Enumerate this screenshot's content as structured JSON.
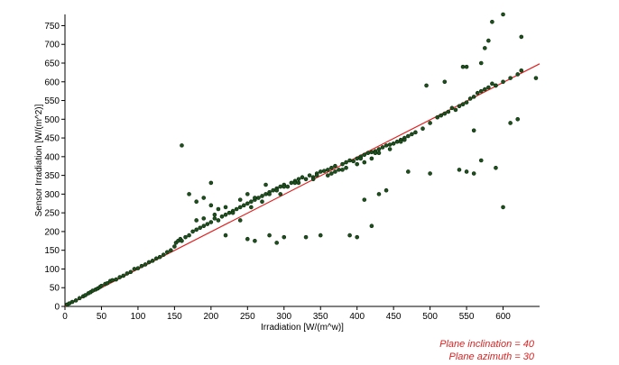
{
  "chart_data": {
    "type": "scatter",
    "title": "",
    "xlabel": "Irradiation [W/(m^w)]",
    "ylabel": "Sensor Irradiation [W/(m^2)]",
    "xlim": [
      0,
      650
    ],
    "ylim": [
      0,
      780
    ],
    "xticks": [
      0,
      50,
      100,
      150,
      200,
      250,
      300,
      350,
      400,
      450,
      500,
      550,
      600
    ],
    "yticks": [
      0,
      50,
      100,
      150,
      200,
      250,
      300,
      350,
      400,
      450,
      500,
      550,
      600,
      650,
      700,
      750
    ],
    "grid": false,
    "legend": "none",
    "colors": {
      "points": "#1f4f1f",
      "point_stroke": "#0a2a0a",
      "fit_line": "#e02020",
      "annotation": "#e02020"
    },
    "fit_line": {
      "x": [
        0,
        650
      ],
      "y": [
        0,
        648
      ]
    },
    "annotations": [
      "Plane inclination = 40",
      "Plane azimuth = 30"
    ],
    "x": [
      3,
      6,
      10,
      15,
      20,
      25,
      28,
      32,
      35,
      38,
      42,
      45,
      48,
      50,
      55,
      58,
      62,
      65,
      70,
      75,
      80,
      85,
      90,
      95,
      100,
      105,
      110,
      115,
      120,
      125,
      130,
      135,
      140,
      145,
      150,
      152,
      155,
      158,
      160,
      165,
      170,
      175,
      180,
      185,
      190,
      195,
      200,
      205,
      210,
      215,
      220,
      225,
      230,
      235,
      240,
      245,
      250,
      255,
      260,
      265,
      270,
      275,
      280,
      285,
      290,
      295,
      300,
      305,
      310,
      315,
      320,
      325,
      330,
      335,
      340,
      345,
      350,
      355,
      360,
      365,
      370,
      375,
      380,
      385,
      390,
      395,
      400,
      405,
      410,
      415,
      420,
      425,
      430,
      435,
      440,
      445,
      450,
      455,
      460,
      465,
      470,
      475,
      480,
      490,
      500,
      510,
      515,
      520,
      525,
      530,
      535,
      540,
      545,
      550,
      555,
      560,
      565,
      570,
      575,
      580,
      585,
      590,
      600,
      610,
      620,
      625,
      170,
      180,
      190,
      200,
      210,
      220,
      240,
      250,
      260,
      270,
      280,
      290,
      300,
      320,
      340,
      360,
      370,
      380,
      400,
      410,
      420,
      430,
      220,
      250,
      260,
      280,
      300,
      420,
      470,
      500,
      540,
      550,
      560,
      570,
      590,
      600,
      520,
      550,
      570,
      575,
      580,
      585,
      590,
      610,
      620,
      625,
      645,
      545,
      600,
      560,
      180,
      200,
      240,
      290,
      330,
      350,
      390,
      400,
      410,
      430,
      440,
      460,
      160,
      190,
      205,
      230,
      255,
      275,
      295,
      315,
      345,
      365,
      385,
      405,
      425,
      445,
      465,
      495
    ],
    "y": [
      5,
      8,
      12,
      16,
      22,
      27,
      30,
      35,
      38,
      42,
      45,
      48,
      52,
      55,
      60,
      62,
      68,
      70,
      72,
      78,
      82,
      88,
      92,
      100,
      102,
      108,
      112,
      118,
      122,
      128,
      132,
      138,
      145,
      150,
      160,
      170,
      175,
      180,
      175,
      185,
      190,
      200,
      205,
      210,
      215,
      220,
      225,
      235,
      230,
      240,
      245,
      250,
      255,
      260,
      265,
      270,
      275,
      280,
      285,
      290,
      295,
      300,
      305,
      310,
      315,
      320,
      325,
      320,
      330,
      335,
      340,
      345,
      340,
      350,
      345,
      355,
      360,
      362,
      365,
      370,
      375,
      365,
      380,
      385,
      390,
      388,
      395,
      400,
      405,
      410,
      412,
      415,
      420,
      425,
      430,
      432,
      435,
      440,
      445,
      450,
      455,
      460,
      465,
      475,
      490,
      505,
      510,
      515,
      520,
      530,
      525,
      535,
      540,
      545,
      555,
      560,
      570,
      575,
      580,
      585,
      595,
      590,
      600,
      610,
      620,
      630,
      300,
      280,
      290,
      270,
      260,
      265,
      285,
      300,
      290,
      280,
      300,
      310,
      320,
      330,
      340,
      350,
      360,
      365,
      380,
      385,
      395,
      410,
      190,
      180,
      175,
      190,
      185,
      215,
      360,
      355,
      365,
      360,
      355,
      390,
      370,
      265,
      600,
      640,
      650,
      690,
      710,
      760,
      590,
      490,
      500,
      720,
      610,
      640,
      780,
      470,
      230,
      330,
      230,
      170,
      185,
      190,
      190,
      185,
      285,
      300,
      310,
      440,
      430,
      235,
      245,
      250,
      265,
      325,
      300,
      330,
      350,
      355,
      370,
      395,
      410,
      420,
      445,
      590
    ]
  }
}
